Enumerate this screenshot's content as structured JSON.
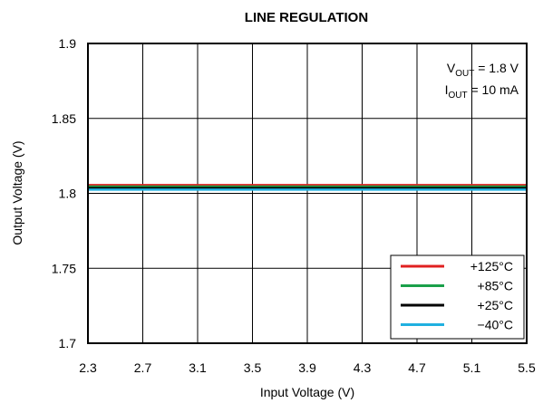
{
  "chart_data": {
    "type": "line",
    "title": "LINE REGULATION",
    "xlabel": "Input Voltage (V)",
    "ylabel": "Output Voltage (V)",
    "xlim": [
      2.3,
      5.5
    ],
    "ylim": [
      1.7,
      1.9
    ],
    "xticks": [
      2.3,
      2.7,
      3.1,
      3.5,
      3.9,
      4.3,
      4.7,
      5.1,
      5.5
    ],
    "xtick_labels": [
      "2.3",
      "2.7",
      "3.1",
      "3.5",
      "3.9",
      "4.3",
      "4.7",
      "5.1",
      "5.5"
    ],
    "yticks": [
      1.7,
      1.75,
      1.8,
      1.85,
      1.9
    ],
    "ytick_labels": [
      "1.7",
      "1.75",
      "1.8",
      "1.85",
      "1.9"
    ],
    "grid": true,
    "legend_position": "bottom-right",
    "annotations": [
      {
        "main": "V",
        "sub": "OUT",
        "rest": " = 1.8 V"
      },
      {
        "main": "I",
        "sub": "OUT",
        "rest": " = 10 mA"
      }
    ],
    "series": [
      {
        "name": "+125°C",
        "color": "#e02020",
        "x": [
          2.3,
          5.5
        ],
        "y": [
          1.8055,
          1.8055
        ]
      },
      {
        "name": "+85°C",
        "color": "#1aa04a",
        "x": [
          2.3,
          5.5
        ],
        "y": [
          1.8045,
          1.8045
        ]
      },
      {
        "name": "+25°C",
        "color": "#000000",
        "x": [
          2.3,
          5.5
        ],
        "y": [
          1.8035,
          1.8035
        ]
      },
      {
        "name": "−40°C",
        "color": "#20b0e0",
        "x": [
          2.3,
          5.5
        ],
        "y": [
          1.8025,
          1.8025
        ]
      }
    ]
  }
}
